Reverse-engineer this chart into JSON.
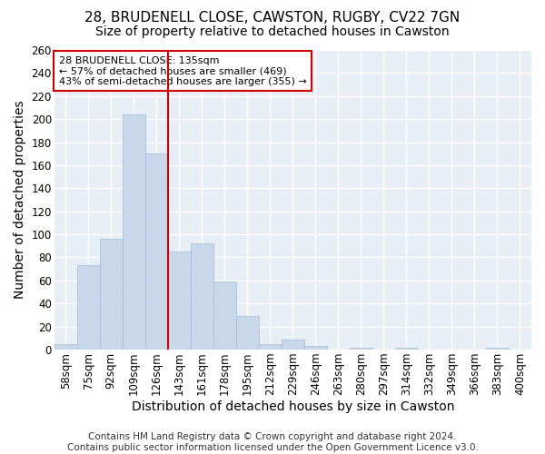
{
  "title1": "28, BRUDENELL CLOSE, CAWSTON, RUGBY, CV22 7GN",
  "title2": "Size of property relative to detached houses in Cawston",
  "xlabel": "Distribution of detached houses by size in Cawston",
  "ylabel": "Number of detached properties",
  "footer1": "Contains HM Land Registry data © Crown copyright and database right 2024.",
  "footer2": "Contains public sector information licensed under the Open Government Licence v3.0.",
  "bin_labels": [
    "58sqm",
    "75sqm",
    "92sqm",
    "109sqm",
    "126sqm",
    "143sqm",
    "161sqm",
    "178sqm",
    "195sqm",
    "212sqm",
    "229sqm",
    "246sqm",
    "263sqm",
    "280sqm",
    "297sqm",
    "314sqm",
    "332sqm",
    "349sqm",
    "366sqm",
    "383sqm",
    "400sqm"
  ],
  "bar_heights": [
    5,
    73,
    96,
    204,
    170,
    85,
    92,
    59,
    29,
    5,
    9,
    3,
    0,
    2,
    0,
    2,
    0,
    0,
    0,
    2,
    0
  ],
  "bar_color": "#c8d8ea",
  "bar_edgecolor": "#a0bcd4",
  "vline_color": "#cc0000",
  "annotation_line1": "28 BRUDENELL CLOSE: 135sqm",
  "annotation_line2": "← 57% of detached houses are smaller (469)",
  "annotation_line3": "43% of semi-detached houses are larger (355) →",
  "ylim": [
    0,
    260
  ],
  "yticks": [
    0,
    20,
    40,
    60,
    80,
    100,
    120,
    140,
    160,
    180,
    200,
    220,
    240,
    260
  ],
  "bg_color": "#ffffff",
  "plot_bg_color": "#e8eef6",
  "grid_color": "#ffffff",
  "title1_fontsize": 11,
  "title2_fontsize": 10,
  "axis_label_fontsize": 10,
  "tick_fontsize": 8.5,
  "footer_fontsize": 7.5
}
